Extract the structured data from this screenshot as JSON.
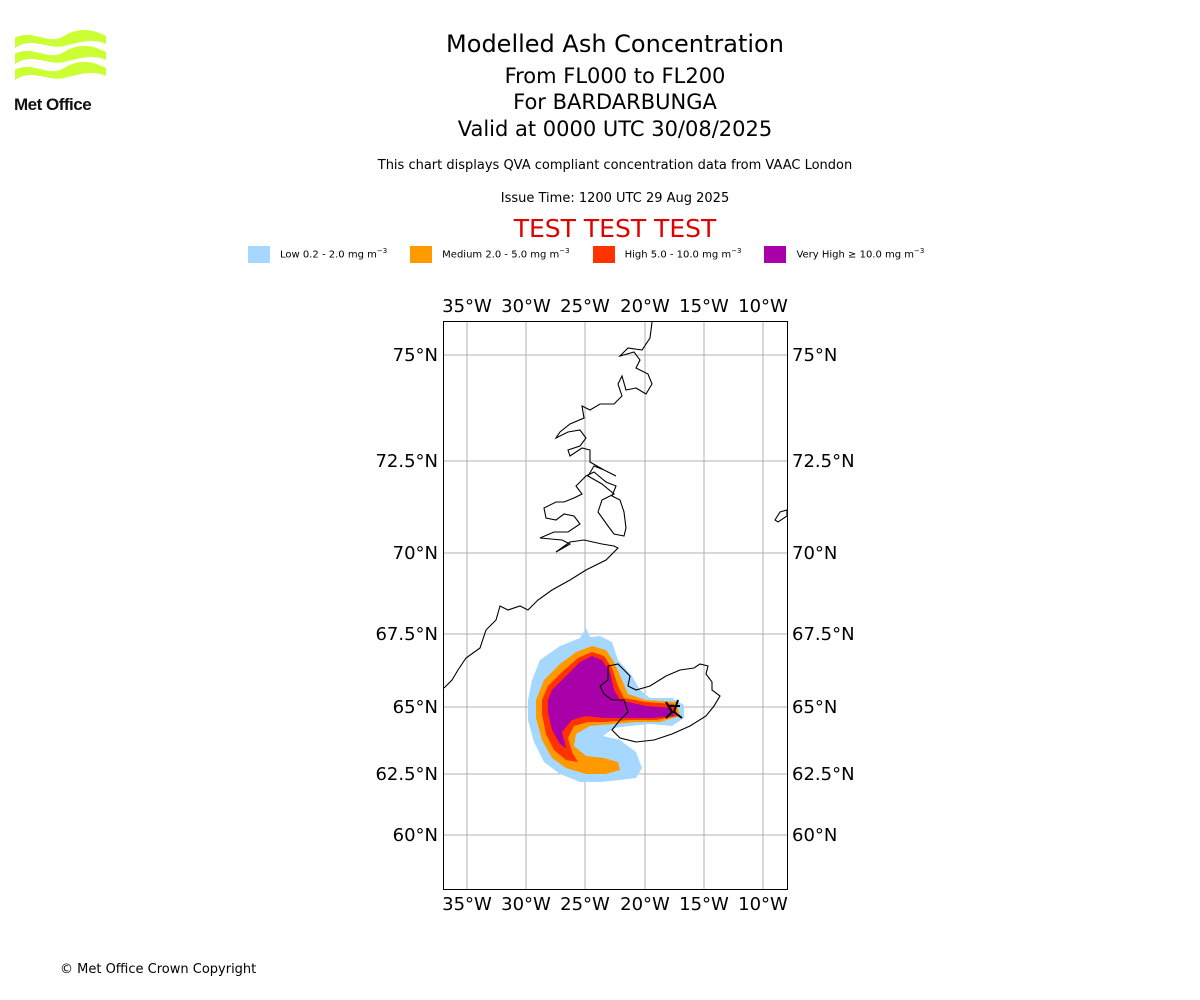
{
  "logo": {
    "text": "Met Office",
    "colour": "#ccff33"
  },
  "header": {
    "title": "Modelled Ash Concentration",
    "range": "From FL000 to FL200",
    "volcano": "For BARDARBUNGA",
    "valid": "Valid at 0000 UTC 30/08/2025",
    "note": "This chart displays QVA compliant concentration data from VAAC London",
    "issue": "Issue Time: 1200 UTC 29 Aug 2025",
    "test": "TEST TEST TEST"
  },
  "legend": [
    {
      "label": "Low 0.2 - 2.0 mg m",
      "unit_sup": "−3",
      "colour": "#a6d8ff"
    },
    {
      "label": "Medium 2.0 - 5.0 mg m",
      "unit_sup": "−3",
      "colour": "#ff9900"
    },
    {
      "label": "High 5.0 - 10.0 mg m",
      "unit_sup": "−3",
      "colour": "#ff3300"
    },
    {
      "label": "Very High ≥ 10.0 mg m",
      "unit_sup": "−3",
      "colour": "#aa00aa"
    }
  ],
  "map": {
    "lon_ticks": [
      "35°W",
      "30°W",
      "25°W",
      "20°W",
      "15°W",
      "10°W"
    ],
    "lat_ticks": [
      "75°N",
      "72.5°N",
      "70°N",
      "67.5°N",
      "65°N",
      "62.5°N",
      "60°N"
    ],
    "gridlines": true
  },
  "footer": {
    "copyright": "© Met Office Crown Copyright"
  }
}
